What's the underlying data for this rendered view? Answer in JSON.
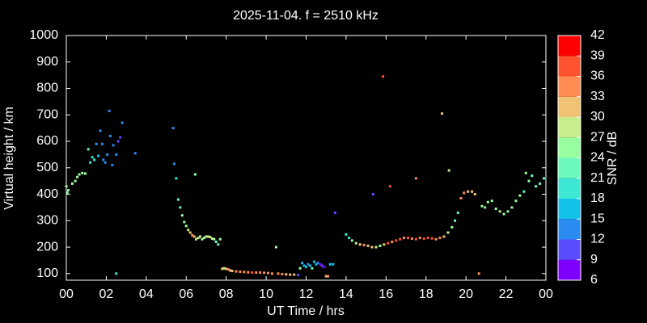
{
  "chart_data": {
    "type": "scatter",
    "title": "2025-11-04. f = 2510 kHz",
    "x_label": "UT Time / hrs",
    "y_label": "Virtual height / km",
    "xlim": [
      0,
      24
    ],
    "ylim": [
      75,
      1000
    ],
    "xticks": [
      {
        "value": 0,
        "label": "00"
      },
      {
        "value": 2,
        "label": "02"
      },
      {
        "value": 4,
        "label": "04"
      },
      {
        "value": 6,
        "label": "06"
      },
      {
        "value": 8,
        "label": "08"
      },
      10,
      12,
      14,
      16,
      18,
      20,
      22,
      {
        "value": 24,
        "label": "00"
      }
    ],
    "yticks": [
      100,
      200,
      300,
      400,
      500,
      600,
      700,
      800,
      900,
      1000
    ],
    "colorbar": {
      "label": "SNR / dB",
      "ticks": [
        6,
        9,
        12,
        15,
        18,
        21,
        24,
        27,
        30,
        33,
        36,
        39,
        42
      ],
      "colors": [
        "#8000ff",
        "#5a4cff",
        "#2a8cf0",
        "#12c2e8",
        "#3ce8d4",
        "#6cf8bc",
        "#98ffa0",
        "#c8ee8c",
        "#f2c274",
        "#ff8c52",
        "#ff5230",
        "#ff0000"
      ]
    },
    "x": [
      0.0,
      0.05,
      0.1,
      0.3,
      0.45,
      0.55,
      0.65,
      0.8,
      0.95,
      1.1,
      1.2,
      1.3,
      1.4,
      1.5,
      1.6,
      1.7,
      1.8,
      1.85,
      1.95,
      2.05,
      2.15,
      2.2,
      2.3,
      2.35,
      2.5,
      2.6,
      2.7,
      2.8,
      2.5,
      3.45,
      5.35,
      5.4,
      5.5,
      5.6,
      5.7,
      5.8,
      5.9,
      6.0,
      6.1,
      6.2,
      6.3,
      6.4,
      6.45,
      6.5,
      6.6,
      6.7,
      6.8,
      6.9,
      7.0,
      7.1,
      7.2,
      7.3,
      7.4,
      7.5,
      7.6,
      7.7,
      7.8,
      7.9,
      8.0,
      8.1,
      8.2,
      8.3,
      8.5,
      8.7,
      8.9,
      9.1,
      9.3,
      9.5,
      9.7,
      9.9,
      10.1,
      10.3,
      10.5,
      10.6,
      10.8,
      11.0,
      11.2,
      11.4,
      11.6,
      11.7,
      11.8,
      11.9,
      12.0,
      12.1,
      12.2,
      12.3,
      12.4,
      12.5,
      12.6,
      12.7,
      12.8,
      12.9,
      13.0,
      13.1,
      13.2,
      13.35,
      13.45,
      14.0,
      14.15,
      14.3,
      14.5,
      14.7,
      14.9,
      15.1,
      15.3,
      15.5,
      15.7,
      15.9,
      16.1,
      16.3,
      16.5,
      16.7,
      16.9,
      17.1,
      17.3,
      17.5,
      17.7,
      17.9,
      18.1,
      18.3,
      18.5,
      18.7,
      18.9,
      19.1,
      19.3,
      19.45,
      19.6,
      19.75,
      19.9,
      20.1,
      20.3,
      20.45,
      20.65,
      20.8,
      20.95,
      21.1,
      21.3,
      21.5,
      21.7,
      21.9,
      22.1,
      22.3,
      22.5,
      22.7,
      22.9,
      23.0,
      23.15,
      23.3,
      23.5,
      23.7,
      23.9,
      15.85,
      16.2,
      15.35,
      17.5,
      18.8,
      19.15
    ],
    "values": [
      430,
      405,
      415,
      440,
      450,
      465,
      475,
      480,
      478,
      570,
      520,
      540,
      530,
      590,
      545,
      640,
      590,
      530,
      520,
      550,
      715,
      620,
      510,
      585,
      550,
      600,
      615,
      670,
      100,
      555,
      650,
      515,
      460,
      380,
      350,
      320,
      295,
      280,
      265,
      255,
      245,
      240,
      475,
      230,
      235,
      240,
      230,
      235,
      240,
      240,
      238,
      232,
      230,
      220,
      210,
      230,
      118,
      120,
      118,
      116,
      112,
      110,
      108,
      107,
      106,
      105,
      104,
      104,
      104,
      103,
      102,
      100,
      200,
      100,
      98,
      97,
      96,
      96,
      95,
      120,
      140,
      130,
      125,
      135,
      130,
      120,
      145,
      135,
      140,
      135,
      130,
      125,
      90,
      90,
      135,
      135,
      330,
      248,
      235,
      225,
      215,
      210,
      208,
      205,
      200,
      200,
      205,
      210,
      215,
      220,
      225,
      230,
      235,
      235,
      232,
      230,
      235,
      232,
      235,
      233,
      230,
      235,
      240,
      255,
      275,
      300,
      330,
      385,
      405,
      410,
      410,
      400,
      100,
      355,
      350,
      370,
      375,
      345,
      335,
      325,
      335,
      350,
      375,
      395,
      410,
      480,
      450,
      470,
      430,
      440,
      460,
      845,
      430,
      400,
      460,
      705,
      490
    ],
    "snr": [
      24,
      26,
      25,
      25,
      25,
      25,
      25,
      25,
      25,
      22,
      20,
      19,
      20,
      14,
      16,
      13,
      12,
      14,
      13,
      14,
      12,
      13,
      12,
      12,
      13,
      11,
      10,
      13,
      18,
      12,
      13,
      12,
      18,
      21,
      22,
      24,
      25,
      26,
      28,
      30,
      33,
      31,
      24,
      28,
      29,
      27,
      24,
      26,
      27,
      29,
      28,
      27,
      24,
      23,
      22,
      24,
      30,
      28,
      30,
      33,
      31,
      30,
      33,
      34,
      35,
      34,
      36,
      34,
      33,
      35,
      34,
      33,
      24,
      34,
      33,
      31,
      32,
      30,
      9,
      24,
      17,
      15,
      16,
      14,
      17,
      21,
      15,
      16,
      14,
      8,
      9,
      7,
      32,
      34,
      15,
      16,
      10,
      18,
      20,
      24,
      28,
      30,
      33,
      32,
      31,
      28,
      25,
      30,
      36,
      33,
      37,
      36,
      34,
      36,
      35,
      37,
      35,
      38,
      36,
      37,
      35,
      33,
      30,
      27,
      25,
      23,
      22,
      33,
      34,
      30,
      31,
      32,
      34,
      26,
      24,
      25,
      25,
      26,
      27,
      26,
      26,
      25,
      24,
      24,
      23,
      26,
      24,
      23,
      22,
      22,
      23,
      36,
      37,
      11,
      33,
      30,
      29
    ]
  }
}
